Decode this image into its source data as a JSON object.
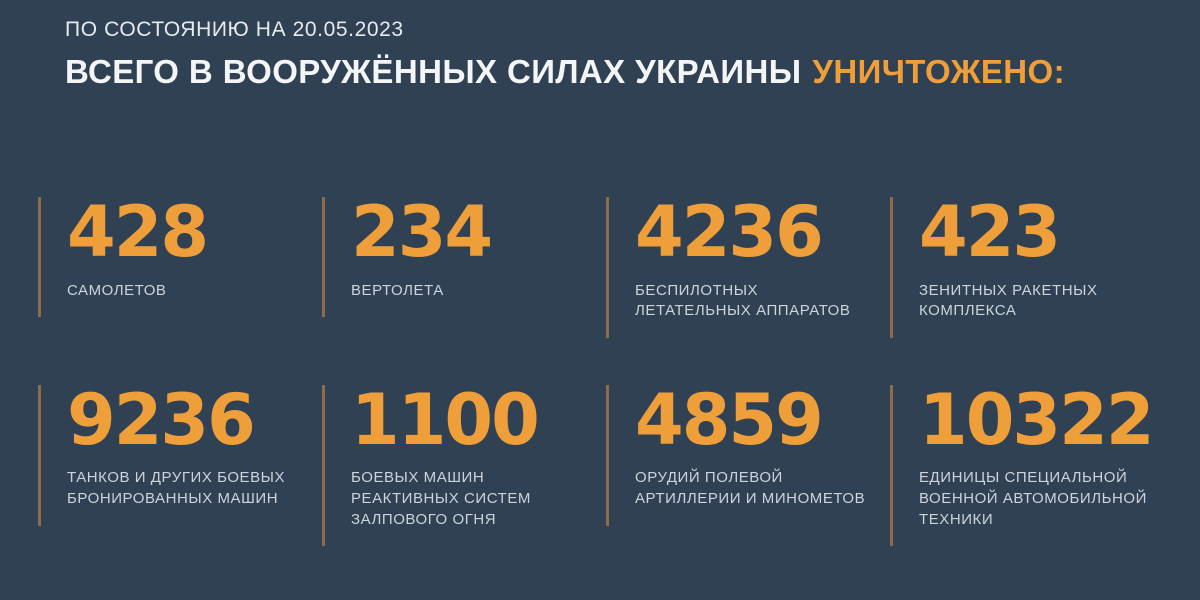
{
  "page": {
    "date_line": "ПО СОСТОЯНИЮ НА 20.05.2023",
    "title": {
      "main": "ВСЕГО В ВООРУЖЁННЫХ СИЛАХ УКРАИНЫ",
      "accent": "УНИЧТОЖЕНО:"
    }
  },
  "colors": {
    "background": "#304154",
    "accent_orange": "#EF9F3A",
    "label_gray": "#CCD4DA",
    "title_white": "#F3F5F6",
    "divider": "rgba(216,144,66,0.55)"
  },
  "stats": [
    {
      "value": "428",
      "label": "САМОЛЕТОВ"
    },
    {
      "value": "234",
      "label": "ВЕРТОЛЕТА"
    },
    {
      "value": "4236",
      "label": "БЕСПИЛОТНЫХ\nЛЕТАТЕЛЬНЫХ АППАРАТОВ"
    },
    {
      "value": "423",
      "label": "ЗЕНИТНЫХ РАКЕТНЫХ\nКОМПЛЕКСА"
    },
    {
      "value": "9236",
      "label": "ТАНКОВ И ДРУГИХ БОЕВЫХ\nБРОНИРОВАННЫХ МАШИН"
    },
    {
      "value": "1100",
      "label": "БОЕВЫХ МАШИН\nРЕАКТИВНЫХ СИСТЕМ\nЗАЛПОВОГО ОГНЯ"
    },
    {
      "value": "4859",
      "label": "ОРУДИЙ ПОЛЕВОЙ\nАРТИЛЛЕРИИ И МИНОМЕТОВ"
    },
    {
      "value": "10322",
      "label": "ЕДИНИЦЫ СПЕЦИАЛЬНОЙ\nВОЕННОЙ АВТОМОБИЛЬНОЙ\nТЕХНИКИ"
    }
  ],
  "chart_data": {
    "type": "table",
    "title": "ВСЕГО В ВООРУЖЁННЫХ СИЛАХ УКРАИНЫ УНИЧТОЖЕНО:",
    "subtitle": "ПО СОСТОЯНИЮ НА 20.05.2023",
    "categories": [
      "САМОЛЕТОВ",
      "ВЕРТОЛЕТА",
      "БЕСПИЛОТНЫХ ЛЕТАТЕЛЬНЫХ АППАРАТОВ",
      "ЗЕНИТНЫХ РАКЕТНЫХ КОМПЛЕКСА",
      "ТАНКОВ И ДРУГИХ БОЕВЫХ БРОНИРОВАННЫХ МАШИН",
      "БОЕВЫХ МАШИН РЕАКТИВНЫХ СИСТЕМ ЗАЛПОВОГО ОГНЯ",
      "ОРУДИЙ ПОЛЕВОЙ АРТИЛЛЕРИИ И МИНОМЕТОВ",
      "ЕДИНИЦЫ СПЕЦИАЛЬНОЙ ВОЕННОЙ АВТОМОБИЛЬНОЙ ТЕХНИКИ"
    ],
    "values": [
      428,
      234,
      4236,
      423,
      9236,
      1100,
      4859,
      10322
    ],
    "layout": "4x2 grid of big-number stat cards, dark slate background, orange values"
  }
}
